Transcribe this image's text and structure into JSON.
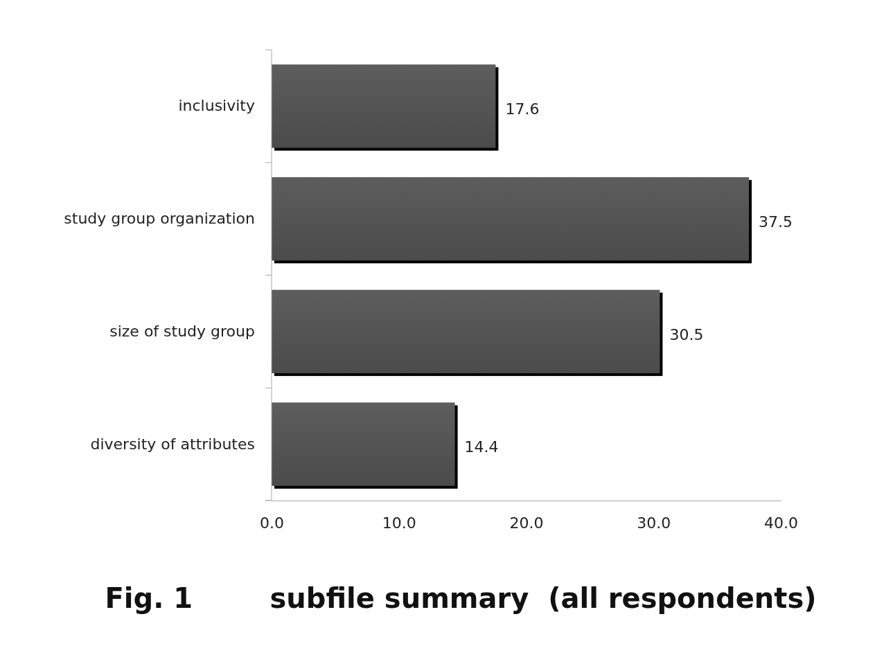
{
  "chart_data": {
    "type": "bar",
    "orientation": "horizontal",
    "title": "Fig. 1        subfile summary  (all respondents)",
    "categories": [
      "inclusivity",
      "study group organization",
      "size of study group",
      "diversity of attributes"
    ],
    "values": [
      17.6,
      37.5,
      30.5,
      14.4
    ],
    "color": "#555555",
    "xlim": [
      0,
      40
    ],
    "xticks": [
      {
        "value": 0,
        "label": "0.0"
      },
      {
        "value": 10,
        "label": "10.0"
      },
      {
        "value": 20,
        "label": "20.0"
      },
      {
        "value": 30,
        "label": "30.0"
      },
      {
        "value": 40,
        "label": "40.0"
      }
    ],
    "data_labels": true,
    "grid": false
  }
}
